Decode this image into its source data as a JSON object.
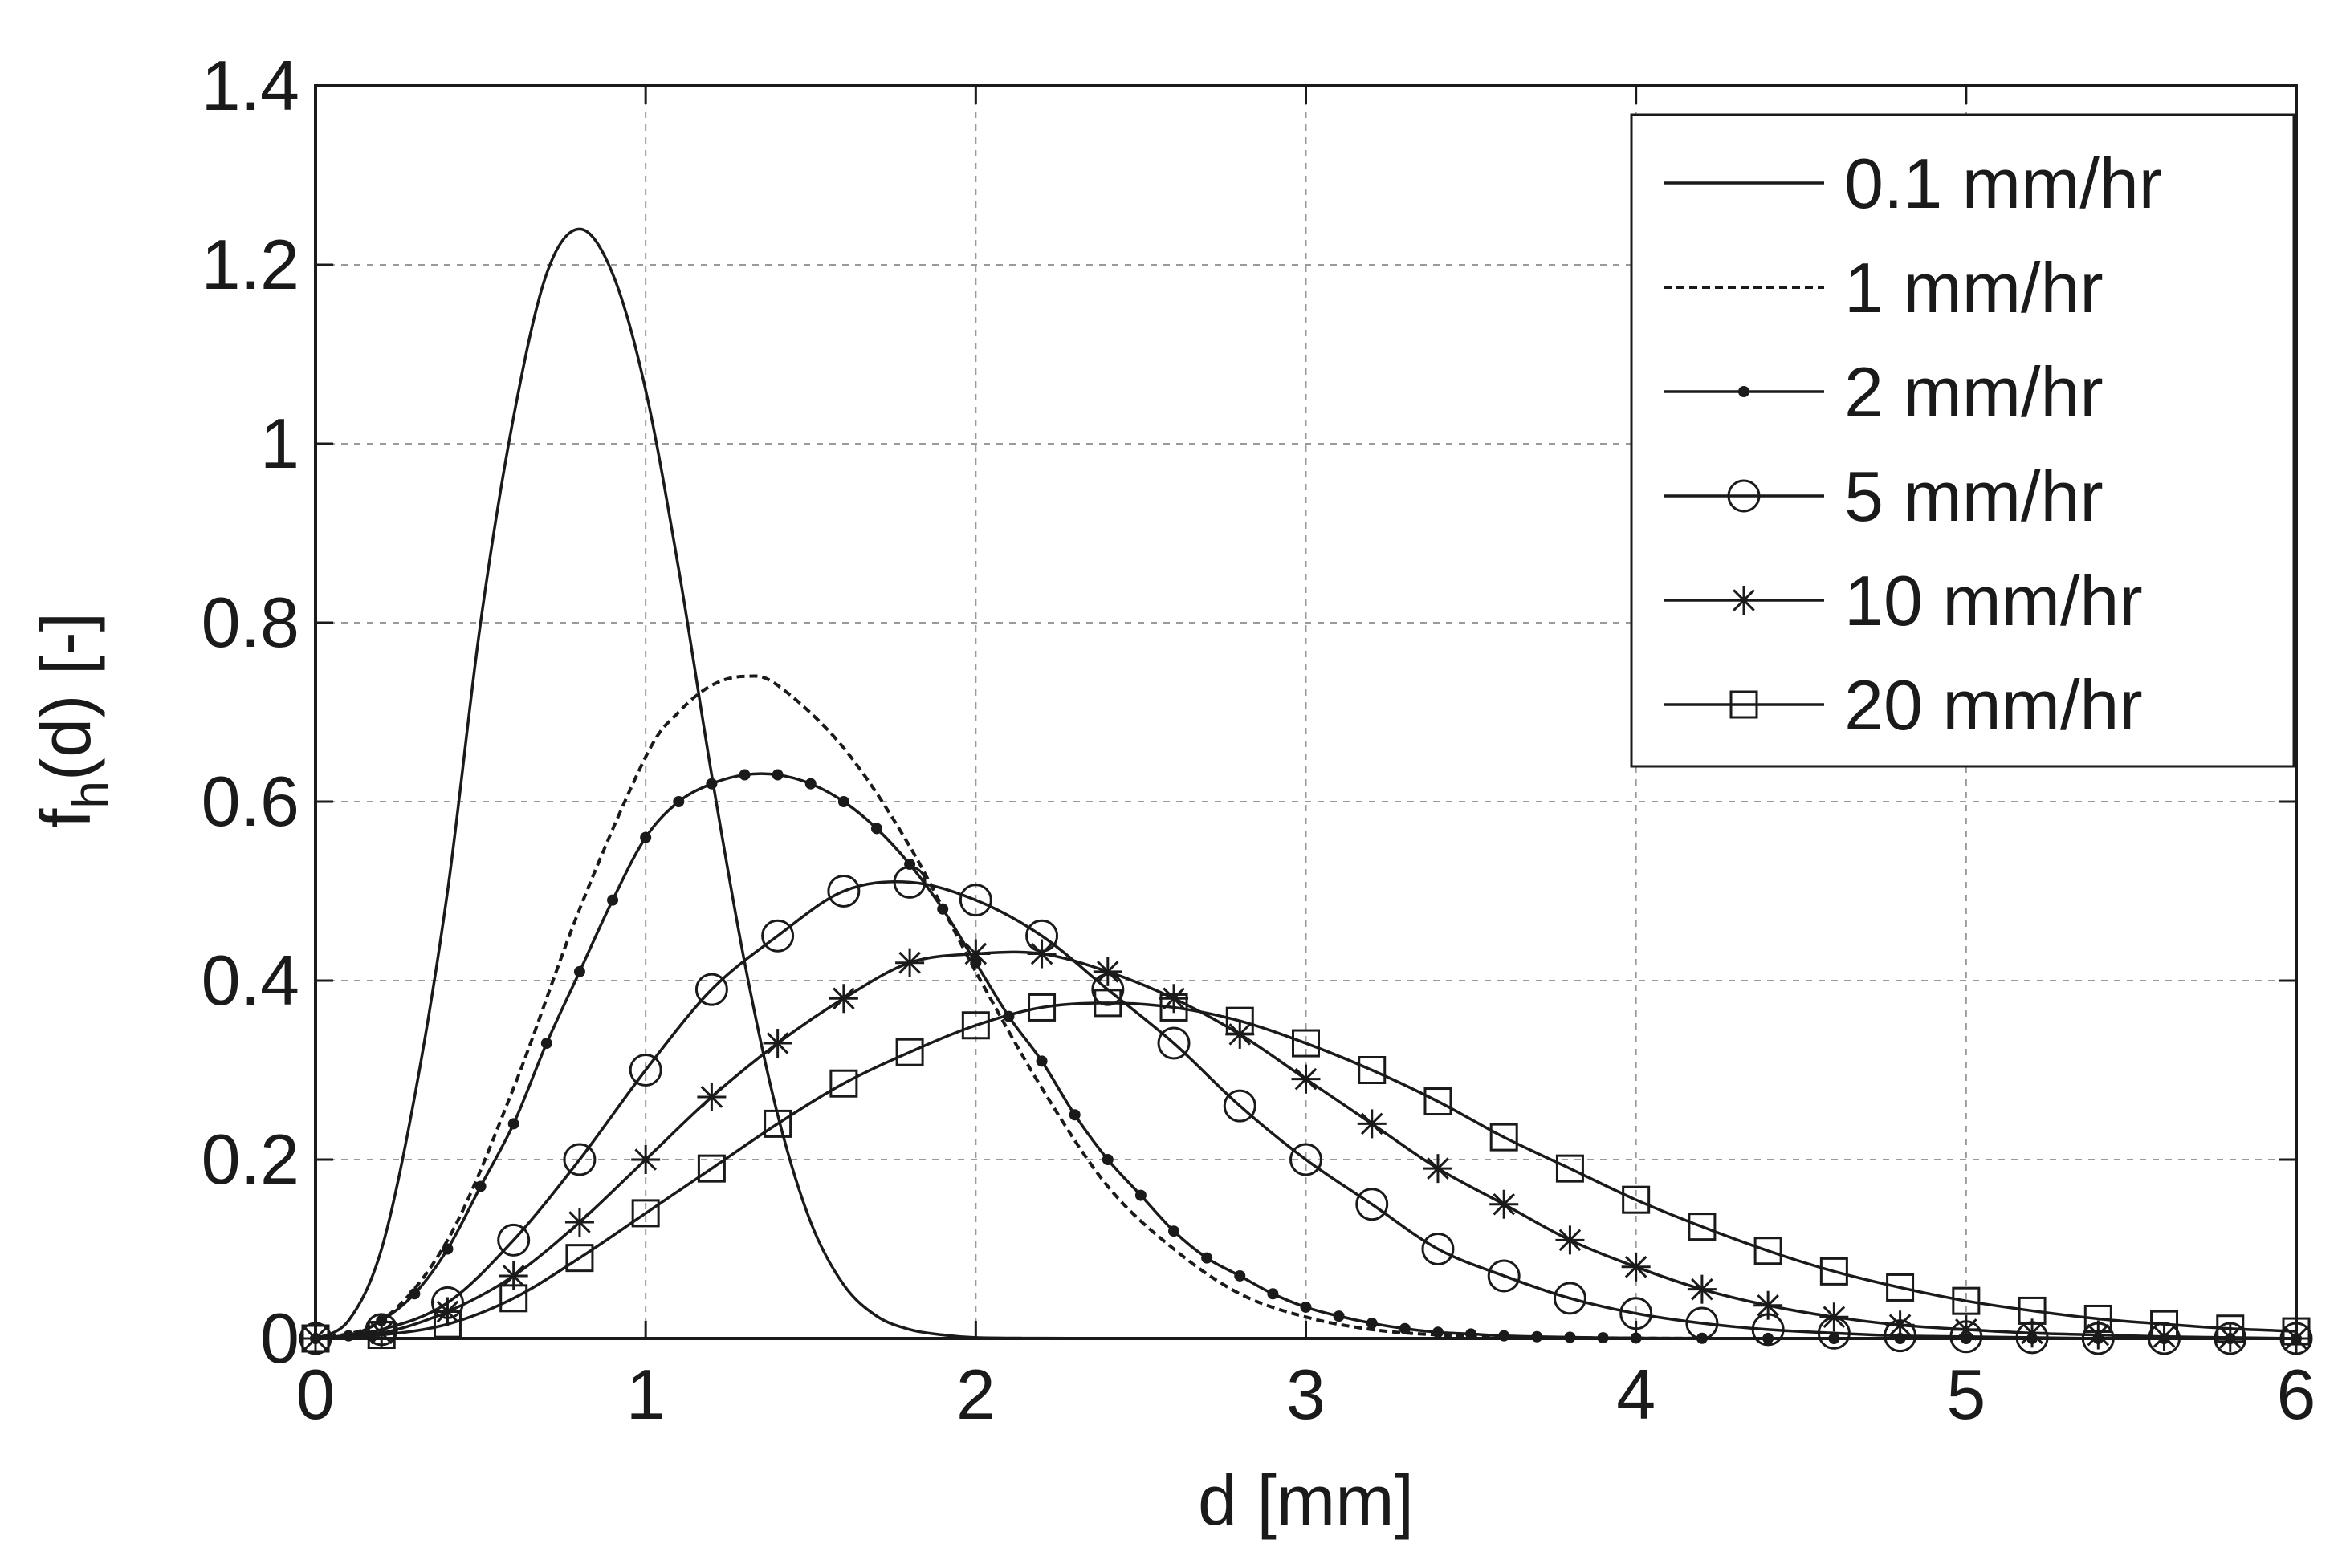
{
  "chart_data": {
    "type": "line",
    "title": "",
    "xlabel": "d [mm]",
    "ylabel": "f_h(d) [-]",
    "ylabel_main": "f",
    "ylabel_sub": "h",
    "ylabel_rest": "(d) [-]",
    "xlim": [
      0,
      6
    ],
    "ylim": [
      0,
      1.4
    ],
    "xticks": [
      0,
      1,
      2,
      3,
      4,
      5,
      6
    ],
    "xtick_labels": [
      "0",
      "1",
      "2",
      "3",
      "4",
      "5",
      "6"
    ],
    "yticks": [
      0,
      0.2,
      0.4,
      0.6,
      0.8,
      1.0,
      1.2,
      1.4
    ],
    "ytick_labels": [
      "0",
      "0.2",
      "0.4",
      "0.6",
      "0.8",
      "1",
      "1.2",
      "1.4"
    ],
    "grid": true,
    "legend_position": "top-right",
    "colors": {
      "line": "#1a1a1a",
      "grid": "#9a9a9a",
      "background": "#ffffff"
    },
    "series": [
      {
        "name": "0.1 mm/hr",
        "style": "solid",
        "marker": "none",
        "x": [
          0,
          0.1,
          0.2,
          0.3,
          0.4,
          0.5,
          0.6,
          0.7,
          0.8,
          0.9,
          1.0,
          1.1,
          1.2,
          1.3,
          1.4,
          1.5,
          1.6,
          1.7,
          1.8,
          1.9,
          2.0,
          2.2,
          2.5,
          3.0,
          4.0,
          5.0,
          6.0
        ],
        "y": [
          0,
          0.02,
          0.1,
          0.27,
          0.5,
          0.8,
          1.03,
          1.19,
          1.24,
          1.19,
          1.06,
          0.86,
          0.63,
          0.42,
          0.25,
          0.13,
          0.06,
          0.025,
          0.01,
          0.004,
          0.001,
          0.0003,
          0.0,
          0.0,
          0.0,
          0.0,
          0.0
        ]
      },
      {
        "name": "1 mm/hr",
        "style": "dashed",
        "marker": "none",
        "x": [
          0,
          0.2,
          0.4,
          0.6,
          0.8,
          1.0,
          1.1,
          1.2,
          1.3,
          1.4,
          1.6,
          1.8,
          2.0,
          2.2,
          2.4,
          2.6,
          2.8,
          3.0,
          3.2,
          3.4,
          3.6,
          4.0,
          4.5,
          5.0,
          6.0
        ],
        "y": [
          0,
          0.02,
          0.11,
          0.28,
          0.48,
          0.65,
          0.7,
          0.73,
          0.74,
          0.73,
          0.66,
          0.55,
          0.41,
          0.28,
          0.17,
          0.1,
          0.05,
          0.024,
          0.01,
          0.004,
          0.002,
          0.0003,
          0.0,
          0.0,
          0.0
        ]
      },
      {
        "name": "2 mm/hr",
        "style": "solid-dots",
        "marker": "dot",
        "x": [
          0,
          0.1,
          0.2,
          0.3,
          0.4,
          0.5,
          0.6,
          0.7,
          0.8,
          0.9,
          1.0,
          1.1,
          1.2,
          1.3,
          1.4,
          1.5,
          1.6,
          1.7,
          1.8,
          1.9,
          2.0,
          2.1,
          2.2,
          2.3,
          2.4,
          2.5,
          2.6,
          2.7,
          2.8,
          2.9,
          3.0,
          3.1,
          3.2,
          3.3,
          3.4,
          3.5,
          3.6,
          3.7,
          3.8,
          3.9,
          4.0,
          4.2,
          4.4,
          4.6,
          4.8,
          5.0,
          5.2,
          5.4,
          5.6,
          5.8,
          6.0
        ],
        "y": [
          0,
          0.003,
          0.02,
          0.05,
          0.1,
          0.17,
          0.24,
          0.33,
          0.41,
          0.49,
          0.56,
          0.6,
          0.62,
          0.63,
          0.63,
          0.62,
          0.6,
          0.57,
          0.53,
          0.48,
          0.42,
          0.36,
          0.31,
          0.25,
          0.2,
          0.16,
          0.12,
          0.09,
          0.07,
          0.05,
          0.035,
          0.025,
          0.017,
          0.011,
          0.007,
          0.005,
          0.003,
          0.002,
          0.0013,
          0.0008,
          0.0005,
          0.0002,
          0.0001,
          0.0,
          0.0,
          0.0,
          0.0,
          0.0,
          0.0,
          0.0,
          0.0
        ]
      },
      {
        "name": "5 mm/hr",
        "style": "solid",
        "marker": "circle",
        "x": [
          0,
          0.2,
          0.4,
          0.6,
          0.8,
          1.0,
          1.2,
          1.4,
          1.6,
          1.8,
          2.0,
          2.2,
          2.4,
          2.6,
          2.8,
          3.0,
          3.2,
          3.4,
          3.6,
          3.8,
          4.0,
          4.2,
          4.4,
          4.6,
          4.8,
          5.0,
          5.2,
          5.4,
          5.6,
          5.8,
          6.0
        ],
        "y": [
          0,
          0.01,
          0.04,
          0.11,
          0.2,
          0.3,
          0.39,
          0.45,
          0.5,
          0.51,
          0.49,
          0.45,
          0.39,
          0.33,
          0.26,
          0.2,
          0.15,
          0.1,
          0.07,
          0.045,
          0.028,
          0.017,
          0.01,
          0.006,
          0.003,
          0.002,
          0.001,
          0.0,
          0.0,
          0.0,
          0.0
        ]
      },
      {
        "name": "10 mm/hr",
        "style": "solid",
        "marker": "star",
        "x": [
          0,
          0.2,
          0.4,
          0.6,
          0.8,
          1.0,
          1.2,
          1.4,
          1.6,
          1.8,
          2.0,
          2.2,
          2.4,
          2.6,
          2.8,
          3.0,
          3.2,
          3.4,
          3.6,
          3.8,
          4.0,
          4.2,
          4.4,
          4.6,
          4.8,
          5.0,
          5.2,
          5.4,
          5.6,
          5.8,
          6.0
        ],
        "y": [
          0,
          0.006,
          0.03,
          0.07,
          0.13,
          0.2,
          0.27,
          0.33,
          0.38,
          0.42,
          0.43,
          0.43,
          0.41,
          0.38,
          0.34,
          0.29,
          0.24,
          0.19,
          0.15,
          0.11,
          0.08,
          0.055,
          0.037,
          0.024,
          0.015,
          0.01,
          0.006,
          0.004,
          0.002,
          0.001,
          0.0
        ]
      },
      {
        "name": "20 mm/hr",
        "style": "solid",
        "marker": "square",
        "x": [
          0,
          0.2,
          0.4,
          0.6,
          0.8,
          1.0,
          1.2,
          1.4,
          1.6,
          1.8,
          2.0,
          2.2,
          2.4,
          2.6,
          2.8,
          3.0,
          3.2,
          3.4,
          3.6,
          3.8,
          4.0,
          4.2,
          4.4,
          4.6,
          4.8,
          5.0,
          5.2,
          5.4,
          5.6,
          5.8,
          6.0
        ],
        "y": [
          0,
          0.004,
          0.016,
          0.045,
          0.09,
          0.14,
          0.19,
          0.24,
          0.285,
          0.32,
          0.35,
          0.37,
          0.375,
          0.37,
          0.355,
          0.33,
          0.3,
          0.265,
          0.225,
          0.19,
          0.155,
          0.125,
          0.098,
          0.075,
          0.057,
          0.042,
          0.031,
          0.022,
          0.016,
          0.011,
          0.008
        ]
      }
    ]
  }
}
